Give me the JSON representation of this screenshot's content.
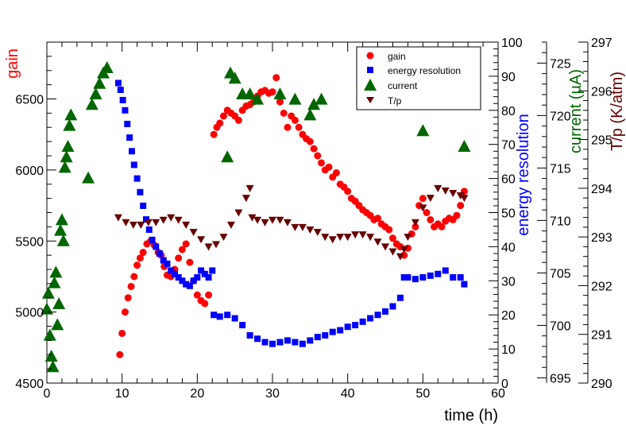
{
  "chart_data": {
    "type": "scatter",
    "xlabel": "time (h)",
    "xlim": [
      0,
      60
    ],
    "x_ticks": [
      0,
      10,
      20,
      30,
      40,
      50,
      60
    ],
    "legend_position": "top-right",
    "colors": {
      "gain": "#ff0000",
      "energy_resolution": "#0000ff",
      "current": "#006600",
      "tp": "#660000"
    },
    "axes": {
      "gain": {
        "label": "gain",
        "range": [
          4500,
          6900
        ],
        "ticks": [
          4500,
          5000,
          5500,
          6000,
          6500
        ]
      },
      "energy_resolution": {
        "label": "energy resolution",
        "range": [
          0,
          100
        ],
        "ticks": [
          0,
          10,
          20,
          30,
          40,
          50,
          60,
          70,
          80,
          90,
          100
        ]
      },
      "current": {
        "label": "current (µA)",
        "range": [
          694.5,
          727
        ],
        "ticks": [
          695,
          700,
          705,
          710,
          715,
          720,
          725
        ]
      },
      "tp": {
        "label": "T/p (K/atm)",
        "range": [
          290,
          297
        ],
        "ticks": [
          290,
          291,
          292,
          293,
          294,
          295,
          296,
          297
        ]
      }
    },
    "legend": [
      "gain",
      "energy resolution",
      "current",
      "T/p"
    ],
    "series": [
      {
        "name": "gain",
        "axis": "gain",
        "marker": "circle",
        "points": [
          [
            9.7,
            4700
          ],
          [
            10.0,
            4850
          ],
          [
            10.4,
            5000
          ],
          [
            10.8,
            5100
          ],
          [
            11.2,
            5180
          ],
          [
            11.6,
            5250
          ],
          [
            12.0,
            5330
          ],
          [
            12.4,
            5380
          ],
          [
            12.8,
            5420
          ],
          [
            13.3,
            5480
          ],
          [
            13.8,
            5500
          ],
          [
            14.3,
            5470
          ],
          [
            14.8,
            5420
          ],
          [
            15.2,
            5400
          ],
          [
            15.6,
            5320
          ],
          [
            16.0,
            5260
          ],
          [
            16.5,
            5250
          ],
          [
            17.0,
            5300
          ],
          [
            17.5,
            5380
          ],
          [
            18.0,
            5440
          ],
          [
            18.5,
            5480
          ],
          [
            19.0,
            5350
          ],
          [
            19.5,
            5220
          ],
          [
            20.0,
            5120
          ],
          [
            20.5,
            5080
          ],
          [
            21.0,
            5060
          ],
          [
            21.5,
            5120
          ],
          [
            22.2,
            6250
          ],
          [
            22.6,
            6300
          ],
          [
            23.0,
            6330
          ],
          [
            23.5,
            6380
          ],
          [
            24.0,
            6420
          ],
          [
            24.5,
            6400
          ],
          [
            25.0,
            6380
          ],
          [
            25.5,
            6350
          ],
          [
            26.0,
            6420
          ],
          [
            26.5,
            6450
          ],
          [
            27.0,
            6460
          ],
          [
            27.5,
            6480
          ],
          [
            28.0,
            6520
          ],
          [
            28.5,
            6550
          ],
          [
            29.0,
            6560
          ],
          [
            29.5,
            6540
          ],
          [
            30.0,
            6550
          ],
          [
            30.5,
            6650
          ],
          [
            31.0,
            6480
          ],
          [
            31.5,
            6400
          ],
          [
            32.0,
            6300
          ],
          [
            32.5,
            6380
          ],
          [
            33.0,
            6350
          ],
          [
            33.5,
            6300
          ],
          [
            34.0,
            6250
          ],
          [
            34.5,
            6220
          ],
          [
            35.0,
            6200
          ],
          [
            35.5,
            6150
          ],
          [
            36.0,
            6100
          ],
          [
            36.5,
            6050
          ],
          [
            37.0,
            6000
          ],
          [
            37.5,
            6020
          ],
          [
            38.0,
            5950
          ],
          [
            38.5,
            5980
          ],
          [
            39.0,
            5900
          ],
          [
            39.5,
            5880
          ],
          [
            40.0,
            5850
          ],
          [
            40.5,
            5800
          ],
          [
            41.0,
            5780
          ],
          [
            41.5,
            5750
          ],
          [
            42.0,
            5720
          ],
          [
            42.5,
            5700
          ],
          [
            43.0,
            5680
          ],
          [
            43.5,
            5650
          ],
          [
            44.0,
            5660
          ],
          [
            44.5,
            5620
          ],
          [
            45.0,
            5600
          ],
          [
            45.5,
            5580
          ],
          [
            46.0,
            5520
          ],
          [
            46.5,
            5480
          ],
          [
            47.0,
            5460
          ],
          [
            47.5,
            5400
          ],
          [
            48.0,
            5450
          ],
          [
            48.5,
            5550
          ],
          [
            49.0,
            5600
          ],
          [
            49.5,
            5750
          ],
          [
            50.0,
            5800
          ],
          [
            50.5,
            5700
          ],
          [
            51.0,
            5650
          ],
          [
            51.5,
            5600
          ],
          [
            52.0,
            5620
          ],
          [
            52.5,
            5600
          ],
          [
            53.0,
            5640
          ],
          [
            53.5,
            5660
          ],
          [
            54.0,
            5650
          ],
          [
            54.5,
            5680
          ],
          [
            55.0,
            5750
          ],
          [
            55.5,
            5850
          ]
        ]
      },
      {
        "name": "energy resolution",
        "axis": "energy_resolution",
        "marker": "square",
        "points": [
          [
            9.5,
            88
          ],
          [
            9.8,
            86
          ],
          [
            10.1,
            83
          ],
          [
            10.4,
            80
          ],
          [
            10.7,
            76
          ],
          [
            11.0,
            72
          ],
          [
            11.3,
            68
          ],
          [
            11.6,
            64
          ],
          [
            12.0,
            60
          ],
          [
            12.4,
            56
          ],
          [
            12.8,
            52
          ],
          [
            13.2,
            48
          ],
          [
            13.6,
            45
          ],
          [
            14.0,
            42
          ],
          [
            14.5,
            40
          ],
          [
            15.0,
            38
          ],
          [
            15.5,
            36
          ],
          [
            16.0,
            35
          ],
          [
            16.5,
            33
          ],
          [
            17.0,
            32
          ],
          [
            17.5,
            31
          ],
          [
            18.0,
            30
          ],
          [
            18.5,
            29
          ],
          [
            19.0,
            28.5
          ],
          [
            19.5,
            30
          ],
          [
            20.0,
            31
          ],
          [
            20.5,
            33
          ],
          [
            21.0,
            32
          ],
          [
            21.5,
            31
          ],
          [
            22.0,
            33
          ],
          [
            22.2,
            20
          ],
          [
            23.0,
            19.5
          ],
          [
            24.0,
            20
          ],
          [
            25.0,
            19
          ],
          [
            26.0,
            17
          ],
          [
            27.0,
            14
          ],
          [
            28.0,
            13
          ],
          [
            29.0,
            12
          ],
          [
            30.0,
            11.5
          ],
          [
            31.0,
            12
          ],
          [
            32.0,
            12.5
          ],
          [
            33.0,
            12
          ],
          [
            34.0,
            11.5
          ],
          [
            35.0,
            12.5
          ],
          [
            36.0,
            13.5
          ],
          [
            37.0,
            14
          ],
          [
            38.0,
            15
          ],
          [
            39.0,
            15.5
          ],
          [
            40.0,
            16.5
          ],
          [
            41.0,
            17
          ],
          [
            42.0,
            18
          ],
          [
            43.0,
            19
          ],
          [
            44.0,
            20
          ],
          [
            45.0,
            21
          ],
          [
            46.0,
            22.5
          ],
          [
            47.0,
            25
          ],
          [
            47.5,
            31
          ],
          [
            48.0,
            31
          ],
          [
            49.0,
            30.5
          ],
          [
            50.0,
            31
          ],
          [
            51.0,
            31.5
          ],
          [
            52.0,
            32
          ],
          [
            53.0,
            33
          ],
          [
            54.0,
            31
          ],
          [
            55.0,
            31
          ],
          [
            55.5,
            29
          ]
        ]
      },
      {
        "name": "current",
        "axis": "current",
        "marker": "triangle-up",
        "points": [
          [
            0.0,
            701.5
          ],
          [
            0.2,
            703
          ],
          [
            0.4,
            699
          ],
          [
            0.6,
            697
          ],
          [
            0.8,
            696
          ],
          [
            1.0,
            704
          ],
          [
            1.2,
            705
          ],
          [
            1.4,
            700
          ],
          [
            1.6,
            702
          ],
          [
            1.8,
            709
          ],
          [
            2.0,
            710
          ],
          [
            2.2,
            708
          ],
          [
            2.4,
            715
          ],
          [
            2.6,
            716
          ],
          [
            2.8,
            717
          ],
          [
            3.0,
            719
          ],
          [
            3.2,
            720
          ],
          [
            5.5,
            714
          ],
          [
            6.0,
            721
          ],
          [
            6.5,
            722
          ],
          [
            7.0,
            723
          ],
          [
            7.5,
            724
          ],
          [
            8.0,
            724.5
          ],
          [
            24.0,
            716
          ],
          [
            24.4,
            724
          ],
          [
            25.0,
            723.5
          ],
          [
            26.0,
            722
          ],
          [
            27.0,
            722
          ],
          [
            28.0,
            721.5
          ],
          [
            31.0,
            722
          ],
          [
            33.0,
            721.5
          ],
          [
            35.0,
            720
          ],
          [
            35.5,
            721
          ],
          [
            36.5,
            721.5
          ],
          [
            50.0,
            718.5
          ],
          [
            55.5,
            717
          ]
        ]
      },
      {
        "name": "T/p",
        "axis": "tp",
        "marker": "triangle-down",
        "points": [
          [
            9.5,
            293.4
          ],
          [
            10.5,
            293.3
          ],
          [
            11.5,
            293.25
          ],
          [
            12.5,
            293.25
          ],
          [
            13.5,
            293.3
          ],
          [
            14.5,
            293.3
          ],
          [
            15.5,
            293.35
          ],
          [
            16.5,
            293.4
          ],
          [
            17.5,
            293.35
          ],
          [
            18.5,
            293.25
          ],
          [
            19.5,
            293.1
          ],
          [
            20.5,
            292.95
          ],
          [
            21.5,
            292.8
          ],
          [
            22.5,
            292.85
          ],
          [
            23.5,
            293.0
          ],
          [
            24.5,
            293.25
          ],
          [
            25.5,
            293.5
          ],
          [
            26.5,
            293.8
          ],
          [
            27.0,
            294.0
          ],
          [
            27.3,
            293.4
          ],
          [
            28.0,
            293.35
          ],
          [
            29.0,
            293.3
          ],
          [
            30.0,
            293.35
          ],
          [
            31.0,
            293.35
          ],
          [
            32.0,
            293.3
          ],
          [
            33.0,
            293.2
          ],
          [
            34.0,
            293.2
          ],
          [
            35.0,
            293.15
          ],
          [
            36.0,
            293.1
          ],
          [
            37.0,
            293.0
          ],
          [
            38.0,
            292.95
          ],
          [
            39.0,
            293.0
          ],
          [
            40.0,
            293.0
          ],
          [
            41.0,
            293.05
          ],
          [
            42.0,
            293.05
          ],
          [
            43.0,
            293.0
          ],
          [
            44.0,
            292.9
          ],
          [
            45.0,
            292.8
          ],
          [
            46.0,
            292.7
          ],
          [
            47.0,
            292.6
          ],
          [
            47.5,
            292.75
          ],
          [
            48.0,
            293.0
          ],
          [
            49.0,
            293.3
          ],
          [
            50.0,
            293.6
          ],
          [
            51.0,
            293.8
          ],
          [
            52.0,
            294.0
          ],
          [
            53.0,
            293.95
          ],
          [
            54.0,
            293.9
          ],
          [
            55.0,
            293.85
          ],
          [
            55.5,
            293.8
          ]
        ]
      }
    ]
  }
}
